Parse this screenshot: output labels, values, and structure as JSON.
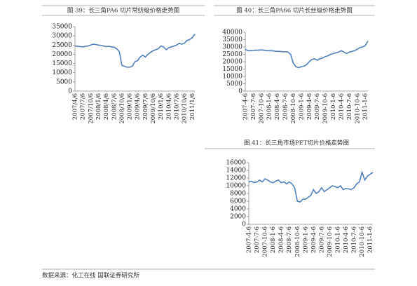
{
  "chart_data": [
    {
      "type": "line",
      "title": "图 39：长三角PA6 切片常纺级价格走势图",
      "categories": [
        "2007/4/6",
        null,
        null,
        "2007/7/6",
        null,
        null,
        "2007/10/6",
        null,
        null,
        "2008/1/6",
        null,
        null,
        "2008/4/6",
        null,
        null,
        "2008/7/6",
        null,
        null,
        "2008/10/6",
        null,
        null,
        "2009/1/6",
        null,
        null,
        "2009/4/6",
        null,
        null,
        "2009/7/6",
        null,
        null,
        "2009/10/6",
        null,
        null,
        "2010/1/6",
        null,
        null,
        "2010/4/6",
        null,
        null,
        "2010/7/6",
        null,
        null,
        "2010/10/6",
        null,
        null,
        "2011/1/6",
        null
      ],
      "series": [
        {
          "color": "#4f81bd",
          "values": [
            24500,
            24300,
            24200,
            24000,
            24300,
            24500,
            25000,
            25500,
            25300,
            25000,
            24800,
            24500,
            24200,
            24300,
            24000,
            23800,
            23000,
            21500,
            14000,
            13500,
            13000,
            13000,
            13500,
            16000,
            16500,
            18500,
            19500,
            18500,
            20000,
            21000,
            22000,
            22500,
            23000,
            24500,
            24000,
            22500,
            23500,
            24000,
            24500,
            25000,
            26000,
            25500,
            26000,
            27500,
            28000,
            29000,
            31000
          ]
        }
      ],
      "ylim": [
        0,
        35000
      ],
      "yticks": [
        0,
        5000,
        10000,
        15000,
        20000,
        25000,
        30000,
        35000
      ]
    },
    {
      "type": "line",
      "title": "图 40：长三角PA66 切片长丝级价格走势图",
      "categories": [
        "2007-4-6",
        null,
        null,
        "2007-7-6",
        null,
        null,
        "2007-10-6",
        null,
        null,
        "2008-1-6",
        null,
        null,
        "2008-4-6",
        null,
        null,
        "2008-7-6",
        null,
        null,
        "2008-10-6",
        null,
        null,
        "2009-1-6",
        null,
        null,
        "2009-4-6",
        null,
        null,
        "2009-7-6",
        null,
        null,
        "2009-10-6",
        null,
        null,
        "2010-1-6",
        null,
        null,
        "2010-4-6",
        null,
        null,
        "2010-7-6",
        null,
        null,
        "2010-10-6",
        null,
        null,
        "2011-1-6",
        null
      ],
      "series": [
        {
          "color": "#4f81bd",
          "values": [
            28500,
            27500,
            27500,
            27600,
            27800,
            27800,
            28000,
            27800,
            27500,
            27500,
            27500,
            27200,
            27000,
            27000,
            26800,
            26700,
            26500,
            25000,
            19000,
            16500,
            16000,
            16500,
            17000,
            18000,
            20000,
            21500,
            22000,
            21000,
            22000,
            22500,
            23500,
            24000,
            25000,
            25500,
            26000,
            26500,
            27500,
            26500,
            25500,
            26500,
            27000,
            27500,
            28500,
            29500,
            30000,
            31000,
            34000
          ]
        }
      ],
      "ylim": [
        0,
        40000
      ],
      "yticks": [
        0,
        5000,
        10000,
        15000,
        20000,
        25000,
        30000,
        35000,
        40000
      ]
    },
    {
      "type": "line",
      "title": "图 41：长三角市场PET切片价格走势图",
      "categories": [
        "2007-4-6",
        null,
        null,
        "2007-7-6",
        null,
        null,
        "2007-10-6",
        null,
        null,
        "2008-1-6",
        null,
        null,
        "2008-4-6",
        null,
        null,
        "2008-7-6",
        null,
        null,
        "2008-10-6",
        null,
        null,
        "2009-1-6",
        null,
        null,
        "2009-4-6",
        null,
        null,
        "2009-7-6",
        null,
        null,
        "2009-10-6",
        null,
        null,
        "2010-1-6",
        null,
        null,
        "2010-4-6",
        null,
        null,
        "2010-7-6",
        null,
        null,
        "2010-10-6",
        null,
        null,
        "2011-1-6",
        null
      ],
      "series": [
        {
          "color": "#4f81bd",
          "values": [
            11000,
            11200,
            10800,
            11000,
            11500,
            11000,
            11800,
            11500,
            11000,
            10800,
            11200,
            11500,
            10800,
            11000,
            10500,
            11000,
            10500,
            9500,
            6000,
            5800,
            6500,
            6500,
            7000,
            7500,
            9000,
            8000,
            8500,
            9500,
            8500,
            9000,
            9500,
            10000,
            9800,
            9500,
            10000,
            9000,
            9300,
            9200,
            9000,
            9500,
            10500,
            11000,
            13500,
            11500,
            12500,
            13000,
            13500
          ]
        }
      ],
      "ylim": [
        0,
        16000
      ],
      "yticks": [
        0,
        2000,
        4000,
        6000,
        8000,
        10000,
        12000,
        14000,
        16000
      ]
    }
  ],
  "source": "数据来源：化工在线 国联证券研究所"
}
